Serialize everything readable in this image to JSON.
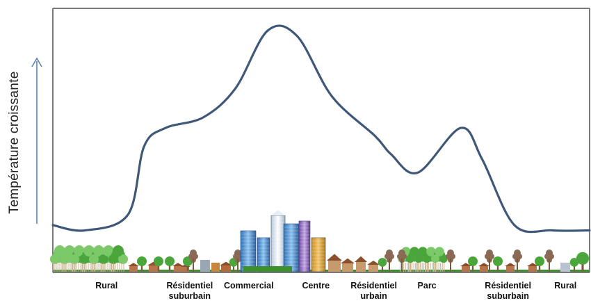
{
  "ylabel": "Température croissante",
  "colors": {
    "curve": "#3f5878",
    "frame": "#7a7a7a",
    "arrow": "#5b84b1",
    "tree": "#4aa63a",
    "tree_light": "#7cc96a",
    "trunk": "#7b5a3c",
    "house": "#b5744a",
    "bare_tree": "#8a6a55",
    "grass": "#3e8f2e"
  },
  "zones": [
    {
      "id": "rural-left",
      "label": "Rural",
      "pos": 0.1
    },
    {
      "id": "residentiel-suburbain-left",
      "label": "Résidentiel suburbain",
      "pos": 0.255
    },
    {
      "id": "commercial",
      "label": "Commercial",
      "pos": 0.365
    },
    {
      "id": "centre",
      "label": "Centre",
      "pos": 0.49
    },
    {
      "id": "residentiel-urbain",
      "label": "Résidentiel urbain",
      "pos": 0.598
    },
    {
      "id": "parc",
      "label": "Parc",
      "pos": 0.697
    },
    {
      "id": "residentiel-suburbain-right",
      "label": "Résidentiel suburbain",
      "pos": 0.848
    },
    {
      "id": "rural-right",
      "label": "Rural",
      "pos": 0.955
    }
  ],
  "temperature_profile": [
    {
      "x": 0.0,
      "t": 0.18
    },
    {
      "x": 0.06,
      "t": 0.16
    },
    {
      "x": 0.14,
      "t": 0.22
    },
    {
      "x": 0.17,
      "t": 0.48
    },
    {
      "x": 0.21,
      "t": 0.55
    },
    {
      "x": 0.28,
      "t": 0.59
    },
    {
      "x": 0.34,
      "t": 0.7
    },
    {
      "x": 0.4,
      "t": 0.92
    },
    {
      "x": 0.455,
      "t": 0.9
    },
    {
      "x": 0.52,
      "t": 0.67
    },
    {
      "x": 0.6,
      "t": 0.52
    },
    {
      "x": 0.63,
      "t": 0.45
    },
    {
      "x": 0.68,
      "t": 0.38
    },
    {
      "x": 0.76,
      "t": 0.55
    },
    {
      "x": 0.8,
      "t": 0.43
    },
    {
      "x": 0.86,
      "t": 0.18
    },
    {
      "x": 0.93,
      "t": 0.16
    },
    {
      "x": 1.0,
      "t": 0.16
    }
  ]
}
